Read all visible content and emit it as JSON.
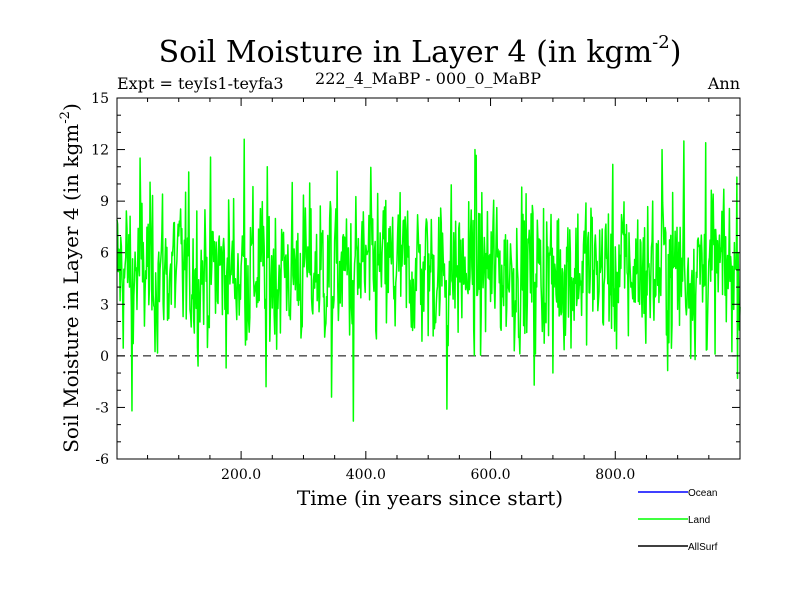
{
  "chart_data": {
    "type": "line",
    "title_main": "Soil Moisture in Layer 4 (in kgm",
    "title_sup": "-2",
    "title_close": ")",
    "subtitle_left": "Expt = teyIs1-teyfa3",
    "subtitle_center": "222_4_MaBP - 000_0_MaBP",
    "subtitle_right": "Ann",
    "xlabel": "Time (in years since start)",
    "ylabel_main": "Soil Moisture in Layer 4 (in kgm",
    "ylabel_sup": "-2",
    "ylabel_close": ")",
    "xlim": [
      1,
      1000
    ],
    "ylim": [
      -6,
      15
    ],
    "x_ticks": [
      200,
      400,
      600,
      800
    ],
    "x_tick_labels": [
      "200.0",
      "400.0",
      "600.0",
      "800.0"
    ],
    "y_ticks": [
      -6,
      -3,
      0,
      3,
      6,
      9,
      12,
      15
    ],
    "y_tick_labels": [
      "-6",
      "-3",
      "0",
      "3",
      "6",
      "9",
      "12",
      "15"
    ],
    "reference_line": 0,
    "legend_position": "bottom-right, below plot",
    "series": [
      {
        "name": "Ocean",
        "color": "#0000ff",
        "values": []
      },
      {
        "name": "Land",
        "color": "#00ff00",
        "mean": 5.0,
        "n_points": 1000,
        "noted_extremes": [
          {
            "x": 25,
            "y": -3.2
          },
          {
            "x": 38,
            "y": 11.5
          },
          {
            "x": 205,
            "y": 12.6
          },
          {
            "x": 240,
            "y": -1.8
          },
          {
            "x": 345,
            "y": -2.4
          },
          {
            "x": 380,
            "y": -3.8
          },
          {
            "x": 530,
            "y": -3.1
          },
          {
            "x": 575,
            "y": 12.0
          },
          {
            "x": 670,
            "y": -1.7
          },
          {
            "x": 700,
            "y": -1.0
          },
          {
            "x": 875,
            "y": 12.0
          },
          {
            "x": 910,
            "y": 12.5
          },
          {
            "x": 945,
            "y": 12.4
          },
          {
            "x": 995,
            "y": 10.4
          }
        ]
      },
      {
        "name": "AllSurf",
        "color": "#000000",
        "values": []
      }
    ]
  }
}
